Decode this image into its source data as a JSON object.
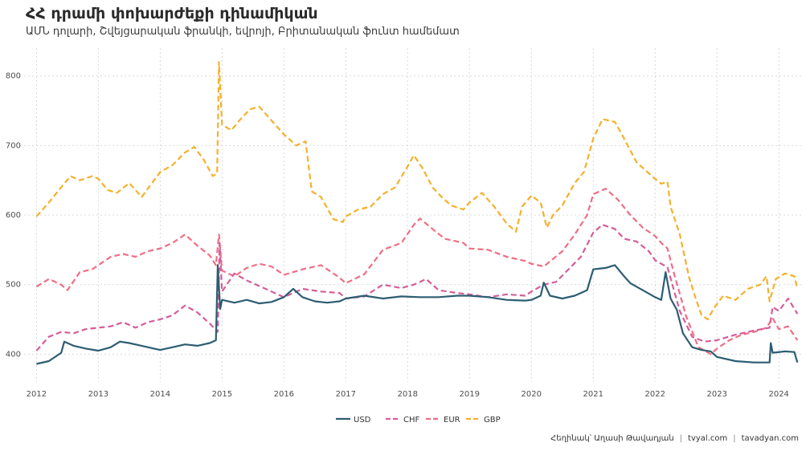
{
  "chart_data": {
    "type": "line",
    "title": "ՀՀ դրամի փոխարժեքի դինամիկան",
    "subtitle": "ԱՄՆ դոլարի, Շվեյցարական ֆրանկի, եվրոյի, Բրիտանական ֆունտ համեմատ",
    "xlabel": "",
    "ylabel": "",
    "xlim": [
      2011.8,
      2024.4
    ],
    "ylim": [
      360,
      840
    ],
    "x_ticks": [
      "2012",
      "2013",
      "2014",
      "2015",
      "2016",
      "2017",
      "2018",
      "2019",
      "2020",
      "2021",
      "2022",
      "2023",
      "2024"
    ],
    "y_ticks": [
      "400",
      "500",
      "600",
      "700",
      "800"
    ],
    "grid": "on",
    "legend_position": "bottom",
    "series": [
      {
        "name": "USD",
        "color": "#2c5d72",
        "dash": "solid",
        "points": [
          [
            2012.0,
            386
          ],
          [
            2012.2,
            390
          ],
          [
            2012.4,
            402
          ],
          [
            2012.45,
            418
          ],
          [
            2012.6,
            412
          ],
          [
            2012.8,
            408
          ],
          [
            2013.0,
            405
          ],
          [
            2013.2,
            410
          ],
          [
            2013.35,
            418
          ],
          [
            2013.5,
            416
          ],
          [
            2013.7,
            412
          ],
          [
            2013.9,
            408
          ],
          [
            2014.0,
            406
          ],
          [
            2014.2,
            410
          ],
          [
            2014.4,
            414
          ],
          [
            2014.6,
            412
          ],
          [
            2014.8,
            416
          ],
          [
            2014.9,
            420
          ],
          [
            2014.93,
            528
          ],
          [
            2014.97,
            465
          ],
          [
            2015.0,
            478
          ],
          [
            2015.2,
            474
          ],
          [
            2015.4,
            478
          ],
          [
            2015.6,
            473
          ],
          [
            2015.8,
            475
          ],
          [
            2016.0,
            482
          ],
          [
            2016.15,
            494
          ],
          [
            2016.3,
            482
          ],
          [
            2016.5,
            476
          ],
          [
            2016.7,
            474
          ],
          [
            2016.9,
            476
          ],
          [
            2017.0,
            480
          ],
          [
            2017.3,
            484
          ],
          [
            2017.6,
            480
          ],
          [
            2017.9,
            483
          ],
          [
            2018.2,
            482
          ],
          [
            2018.5,
            482
          ],
          [
            2018.8,
            484
          ],
          [
            2019.0,
            484
          ],
          [
            2019.3,
            482
          ],
          [
            2019.6,
            478
          ],
          [
            2019.9,
            477
          ],
          [
            2020.0,
            478
          ],
          [
            2020.15,
            484
          ],
          [
            2020.2,
            503
          ],
          [
            2020.3,
            484
          ],
          [
            2020.5,
            480
          ],
          [
            2020.7,
            484
          ],
          [
            2020.9,
            492
          ],
          [
            2021.0,
            522
          ],
          [
            2021.2,
            524
          ],
          [
            2021.35,
            528
          ],
          [
            2021.5,
            512
          ],
          [
            2021.6,
            502
          ],
          [
            2021.8,
            492
          ],
          [
            2022.0,
            482
          ],
          [
            2022.1,
            478
          ],
          [
            2022.17,
            518
          ],
          [
            2022.25,
            480
          ],
          [
            2022.35,
            464
          ],
          [
            2022.45,
            430
          ],
          [
            2022.6,
            410
          ],
          [
            2022.75,
            406
          ],
          [
            2022.9,
            404
          ],
          [
            2023.0,
            396
          ],
          [
            2023.3,
            390
          ],
          [
            2023.6,
            388
          ],
          [
            2023.85,
            388
          ],
          [
            2023.87,
            416
          ],
          [
            2023.9,
            402
          ],
          [
            2024.1,
            404
          ],
          [
            2024.25,
            403
          ],
          [
            2024.3,
            388
          ]
        ]
      },
      {
        "name": "CHF",
        "color": "#d45e9a",
        "dash": "dashed",
        "points": [
          [
            2012.0,
            405
          ],
          [
            2012.2,
            425
          ],
          [
            2012.4,
            432
          ],
          [
            2012.6,
            430
          ],
          [
            2012.8,
            436
          ],
          [
            2013.0,
            438
          ],
          [
            2013.2,
            440
          ],
          [
            2013.4,
            446
          ],
          [
            2013.6,
            438
          ],
          [
            2013.8,
            446
          ],
          [
            2014.0,
            450
          ],
          [
            2014.2,
            456
          ],
          [
            2014.4,
            470
          ],
          [
            2014.6,
            460
          ],
          [
            2014.8,
            444
          ],
          [
            2014.93,
            432
          ],
          [
            2014.96,
            560
          ],
          [
            2015.0,
            490
          ],
          [
            2015.2,
            516
          ],
          [
            2015.4,
            506
          ],
          [
            2015.6,
            498
          ],
          [
            2015.8,
            490
          ],
          [
            2016.0,
            482
          ],
          [
            2016.3,
            494
          ],
          [
            2016.6,
            490
          ],
          [
            2016.9,
            488
          ],
          [
            2017.0,
            480
          ],
          [
            2017.3,
            483
          ],
          [
            2017.6,
            500
          ],
          [
            2017.9,
            495
          ],
          [
            2018.1,
            500
          ],
          [
            2018.3,
            508
          ],
          [
            2018.5,
            492
          ],
          [
            2018.8,
            488
          ],
          [
            2019.0,
            486
          ],
          [
            2019.3,
            482
          ],
          [
            2019.6,
            486
          ],
          [
            2019.9,
            484
          ],
          [
            2020.0,
            490
          ],
          [
            2020.2,
            500
          ],
          [
            2020.4,
            504
          ],
          [
            2020.6,
            522
          ],
          [
            2020.8,
            540
          ],
          [
            2021.0,
            575
          ],
          [
            2021.15,
            586
          ],
          [
            2021.35,
            580
          ],
          [
            2021.5,
            566
          ],
          [
            2021.7,
            562
          ],
          [
            2021.9,
            548
          ],
          [
            2022.0,
            535
          ],
          [
            2022.2,
            525
          ],
          [
            2022.4,
            462
          ],
          [
            2022.6,
            425
          ],
          [
            2022.8,
            418
          ],
          [
            2023.0,
            420
          ],
          [
            2023.3,
            428
          ],
          [
            2023.6,
            434
          ],
          [
            2023.85,
            438
          ],
          [
            2023.9,
            468
          ],
          [
            2024.0,
            462
          ],
          [
            2024.15,
            480
          ],
          [
            2024.3,
            458
          ]
        ]
      },
      {
        "name": "EUR",
        "color": "#f06e84",
        "dash": "dashed",
        "points": [
          [
            2012.0,
            497
          ],
          [
            2012.2,
            508
          ],
          [
            2012.4,
            500
          ],
          [
            2012.5,
            492
          ],
          [
            2012.7,
            518
          ],
          [
            2012.9,
            522
          ],
          [
            2013.0,
            528
          ],
          [
            2013.2,
            540
          ],
          [
            2013.4,
            544
          ],
          [
            2013.6,
            540
          ],
          [
            2013.8,
            548
          ],
          [
            2014.0,
            552
          ],
          [
            2014.2,
            560
          ],
          [
            2014.4,
            572
          ],
          [
            2014.6,
            556
          ],
          [
            2014.8,
            542
          ],
          [
            2014.9,
            528
          ],
          [
            2014.95,
            572
          ],
          [
            2015.0,
            520
          ],
          [
            2015.2,
            512
          ],
          [
            2015.4,
            524
          ],
          [
            2015.6,
            530
          ],
          [
            2015.8,
            526
          ],
          [
            2016.0,
            514
          ],
          [
            2016.3,
            522
          ],
          [
            2016.6,
            528
          ],
          [
            2016.9,
            510
          ],
          [
            2017.0,
            502
          ],
          [
            2017.3,
            515
          ],
          [
            2017.6,
            550
          ],
          [
            2017.9,
            560
          ],
          [
            2018.1,
            586
          ],
          [
            2018.2,
            595
          ],
          [
            2018.4,
            580
          ],
          [
            2018.6,
            566
          ],
          [
            2018.9,
            560
          ],
          [
            2019.0,
            552
          ],
          [
            2019.3,
            550
          ],
          [
            2019.6,
            540
          ],
          [
            2019.9,
            534
          ],
          [
            2020.0,
            530
          ],
          [
            2020.2,
            526
          ],
          [
            2020.5,
            548
          ],
          [
            2020.7,
            572
          ],
          [
            2020.9,
            600
          ],
          [
            2021.0,
            630
          ],
          [
            2021.2,
            638
          ],
          [
            2021.4,
            622
          ],
          [
            2021.6,
            600
          ],
          [
            2021.8,
            582
          ],
          [
            2022.0,
            570
          ],
          [
            2022.1,
            560
          ],
          [
            2022.2,
            552
          ],
          [
            2022.3,
            518
          ],
          [
            2022.5,
            455
          ],
          [
            2022.7,
            410
          ],
          [
            2022.9,
            400
          ],
          [
            2023.0,
            408
          ],
          [
            2023.2,
            420
          ],
          [
            2023.4,
            428
          ],
          [
            2023.6,
            432
          ],
          [
            2023.8,
            438
          ],
          [
            2023.9,
            452
          ],
          [
            2024.0,
            436
          ],
          [
            2024.15,
            440
          ],
          [
            2024.3,
            420
          ]
        ]
      },
      {
        "name": "GBP",
        "color": "#f5b02c",
        "dash": "dashed",
        "points": [
          [
            2012.0,
            598
          ],
          [
            2012.2,
            618
          ],
          [
            2012.4,
            640
          ],
          [
            2012.55,
            656
          ],
          [
            2012.7,
            650
          ],
          [
            2012.9,
            656
          ],
          [
            2013.0,
            652
          ],
          [
            2013.15,
            636
          ],
          [
            2013.3,
            632
          ],
          [
            2013.5,
            646
          ],
          [
            2013.7,
            626
          ],
          [
            2013.9,
            650
          ],
          [
            2014.0,
            662
          ],
          [
            2014.2,
            672
          ],
          [
            2014.4,
            690
          ],
          [
            2014.55,
            698
          ],
          [
            2014.7,
            680
          ],
          [
            2014.85,
            656
          ],
          [
            2014.92,
            660
          ],
          [
            2014.95,
            820
          ],
          [
            2015.0,
            730
          ],
          [
            2015.15,
            722
          ],
          [
            2015.3,
            738
          ],
          [
            2015.45,
            752
          ],
          [
            2015.6,
            756
          ],
          [
            2015.8,
            736
          ],
          [
            2016.0,
            716
          ],
          [
            2016.2,
            700
          ],
          [
            2016.35,
            706
          ],
          [
            2016.45,
            634
          ],
          [
            2016.6,
            626
          ],
          [
            2016.8,
            594
          ],
          [
            2016.95,
            590
          ],
          [
            2017.0,
            598
          ],
          [
            2017.2,
            608
          ],
          [
            2017.4,
            612
          ],
          [
            2017.6,
            630
          ],
          [
            2017.8,
            640
          ],
          [
            2018.0,
            670
          ],
          [
            2018.1,
            686
          ],
          [
            2018.25,
            666
          ],
          [
            2018.4,
            640
          ],
          [
            2018.55,
            626
          ],
          [
            2018.7,
            614
          ],
          [
            2018.9,
            608
          ],
          [
            2019.0,
            618
          ],
          [
            2019.2,
            632
          ],
          [
            2019.4,
            612
          ],
          [
            2019.6,
            588
          ],
          [
            2019.75,
            576
          ],
          [
            2019.85,
            612
          ],
          [
            2020.0,
            628
          ],
          [
            2020.15,
            618
          ],
          [
            2020.25,
            582
          ],
          [
            2020.35,
            600
          ],
          [
            2020.5,
            614
          ],
          [
            2020.7,
            646
          ],
          [
            2020.85,
            662
          ],
          [
            2021.0,
            710
          ],
          [
            2021.15,
            738
          ],
          [
            2021.35,
            734
          ],
          [
            2021.5,
            710
          ],
          [
            2021.7,
            676
          ],
          [
            2021.9,
            660
          ],
          [
            2022.0,
            652
          ],
          [
            2022.1,
            645
          ],
          [
            2022.2,
            648
          ],
          [
            2022.25,
            612
          ],
          [
            2022.4,
            572
          ],
          [
            2022.55,
            510
          ],
          [
            2022.65,
            482
          ],
          [
            2022.75,
            456
          ],
          [
            2022.85,
            450
          ],
          [
            2022.95,
            466
          ],
          [
            2023.1,
            484
          ],
          [
            2023.3,
            478
          ],
          [
            2023.5,
            494
          ],
          [
            2023.7,
            500
          ],
          [
            2023.8,
            512
          ],
          [
            2023.85,
            476
          ],
          [
            2023.95,
            508
          ],
          [
            2024.1,
            516
          ],
          [
            2024.25,
            512
          ],
          [
            2024.3,
            494
          ]
        ]
      }
    ]
  },
  "caption": {
    "author": "Հեղինակ՝ Աղասի Թավադյան",
    "site1": "tvyal.com",
    "site2": "tavadyan.com",
    "separator": "|"
  }
}
